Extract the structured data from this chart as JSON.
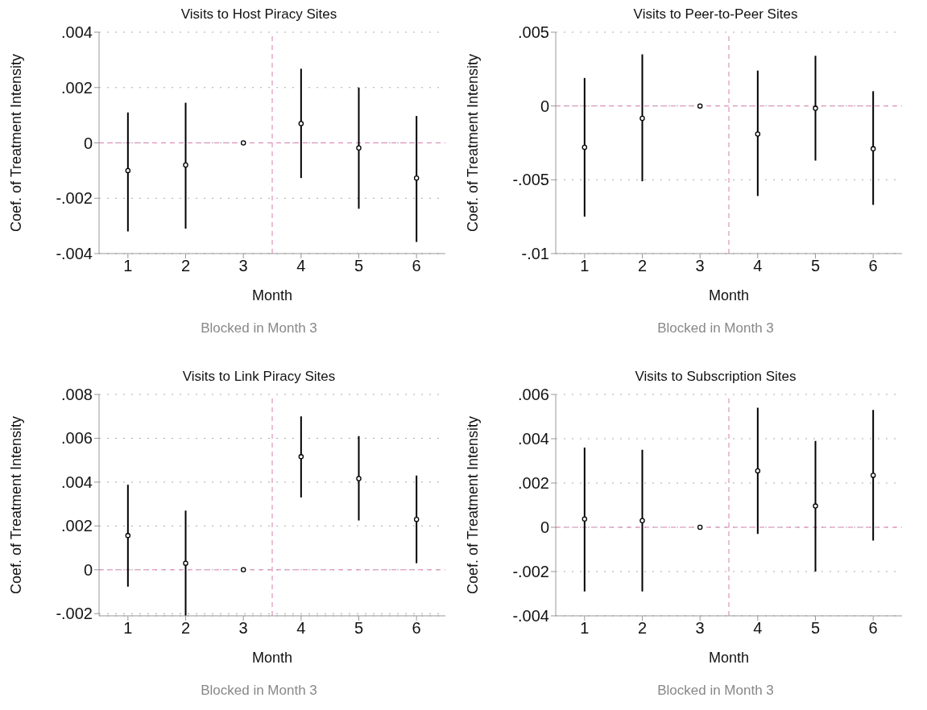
{
  "chart_data": [
    {
      "type": "scatter",
      "title": "Visits to Host Piracy Sites",
      "xlabel": "Month",
      "ylabel": "Coef. of Treatment Intensity",
      "annotations": [
        "Blocked in Month 3"
      ],
      "x": [
        1,
        2,
        3,
        4,
        5,
        6
      ],
      "values": [
        -0.001,
        -0.0008,
        0,
        0.0007,
        -0.00018,
        -0.00127
      ],
      "errors": [
        [
          -0.0032,
          0.0011
        ],
        [
          -0.0031,
          0.00145
        ],
        null,
        [
          -0.00127,
          0.00268
        ],
        [
          -0.00238,
          0.002
        ],
        [
          -0.00358,
          0.00097
        ]
      ],
      "color": "#000000",
      "marker": "circle",
      "xlim": [
        0.5,
        6.5
      ],
      "xticks": [
        1,
        2,
        3,
        4,
        5,
        6
      ],
      "ylim": [
        -0.004,
        0.004
      ],
      "yticks": [
        {
          "value": -0.004,
          "label": "-.004"
        },
        {
          "value": -0.002,
          "label": "-.002"
        },
        {
          "value": 0,
          "label": "0"
        },
        {
          "value": 0.002,
          "label": ".002"
        },
        {
          "value": 0.004,
          "label": ".004"
        }
      ],
      "grid": "y",
      "ref_lines": [
        {
          "axis": "x",
          "value": 3.5,
          "color": "#d67eac",
          "line_style": "dashed"
        },
        {
          "axis": "y",
          "value": 0,
          "color": "#d67eac",
          "line_style": "dashed"
        }
      ]
    },
    {
      "type": "scatter",
      "title": "Visits to Peer-to-Peer Sites",
      "xlabel": "Month",
      "ylabel": "Coef. of Treatment Intensity",
      "annotations": [
        "Blocked in Month 3"
      ],
      "x": [
        1,
        2,
        3,
        4,
        5,
        6
      ],
      "values": [
        -0.0028,
        -0.00084,
        0,
        -0.0019,
        -0.00016,
        -0.0029
      ],
      "errors": [
        [
          -0.0075,
          0.0019
        ],
        [
          -0.0051,
          0.0035
        ],
        null,
        [
          -0.0061,
          0.0024
        ],
        [
          -0.0037,
          0.0034
        ],
        [
          -0.0067,
          0.001
        ]
      ],
      "color": "#000000",
      "marker": "circle",
      "xlim": [
        0.5,
        6.5
      ],
      "xticks": [
        1,
        2,
        3,
        4,
        5,
        6
      ],
      "ylim": [
        -0.01,
        0.005
      ],
      "yticks": [
        {
          "value": -0.01,
          "label": "-.01"
        },
        {
          "value": -0.005,
          "label": "-.005"
        },
        {
          "value": 0,
          "label": "0"
        },
        {
          "value": 0.005,
          "label": ".005"
        }
      ],
      "grid": "y",
      "ref_lines": [
        {
          "axis": "x",
          "value": 3.5,
          "color": "#d67eac",
          "line_style": "dashed"
        },
        {
          "axis": "y",
          "value": 0,
          "color": "#d67eac",
          "line_style": "dashed"
        }
      ]
    },
    {
      "type": "scatter",
      "title": "Visits to Link Piracy Sites",
      "xlabel": "Month",
      "ylabel": "Coef. of Treatment Intensity",
      "annotations": [
        "Blocked in Month 3"
      ],
      "x": [
        1,
        2,
        3,
        4,
        5,
        6
      ],
      "values": [
        0.00156,
        0.0003,
        0,
        0.00516,
        0.00416,
        0.0023
      ],
      "errors": [
        [
          -0.00077,
          0.00388
        ],
        [
          -0.0021,
          0.0027
        ],
        null,
        [
          0.0033,
          0.007
        ],
        [
          0.00225,
          0.0061
        ],
        [
          0.0003,
          0.0043
        ]
      ],
      "color": "#000000",
      "marker": "circle",
      "xlim": [
        0.5,
        6.5
      ],
      "xticks": [
        1,
        2,
        3,
        4,
        5,
        6
      ],
      "ylim": [
        -0.0021,
        0.008
      ],
      "yticks": [
        {
          "value": -0.002,
          "label": "-.002"
        },
        {
          "value": 0,
          "label": "0"
        },
        {
          "value": 0.002,
          "label": ".002"
        },
        {
          "value": 0.004,
          "label": ".004"
        },
        {
          "value": 0.006,
          "label": ".006"
        },
        {
          "value": 0.008,
          "label": ".008"
        }
      ],
      "grid": "y",
      "ref_lines": [
        {
          "axis": "x",
          "value": 3.5,
          "color": "#d67eac",
          "line_style": "dashed"
        },
        {
          "axis": "y",
          "value": 0,
          "color": "#d67eac",
          "line_style": "dashed"
        }
      ]
    },
    {
      "type": "scatter",
      "title": "Visits to Subscription Sites",
      "xlabel": "Month",
      "ylabel": "Coef. of Treatment Intensity",
      "annotations": [
        "Blocked in Month 3"
      ],
      "x": [
        1,
        2,
        3,
        4,
        5,
        6
      ],
      "values": [
        0.00037,
        0.0003,
        0,
        0.00255,
        0.00096,
        0.00235
      ],
      "errors": [
        [
          -0.0029,
          0.0036
        ],
        [
          -0.0029,
          0.0035
        ],
        null,
        [
          -0.0003,
          0.0054
        ],
        [
          -0.002,
          0.0039
        ],
        [
          -0.0006,
          0.0053
        ]
      ],
      "color": "#000000",
      "marker": "circle",
      "xlim": [
        0.5,
        6.5
      ],
      "xticks": [
        1,
        2,
        3,
        4,
        5,
        6
      ],
      "ylim": [
        -0.004,
        0.006
      ],
      "yticks": [
        {
          "value": -0.004,
          "label": "-.004"
        },
        {
          "value": -0.002,
          "label": "-.002"
        },
        {
          "value": 0,
          "label": "0"
        },
        {
          "value": 0.002,
          "label": ".002"
        },
        {
          "value": 0.004,
          "label": ".004"
        },
        {
          "value": 0.006,
          "label": ".006"
        }
      ],
      "grid": "y",
      "ref_lines": [
        {
          "axis": "x",
          "value": 3.5,
          "color": "#d67eac",
          "line_style": "dashed"
        },
        {
          "axis": "y",
          "value": 0,
          "color": "#d67eac",
          "line_style": "dashed"
        }
      ]
    }
  ]
}
